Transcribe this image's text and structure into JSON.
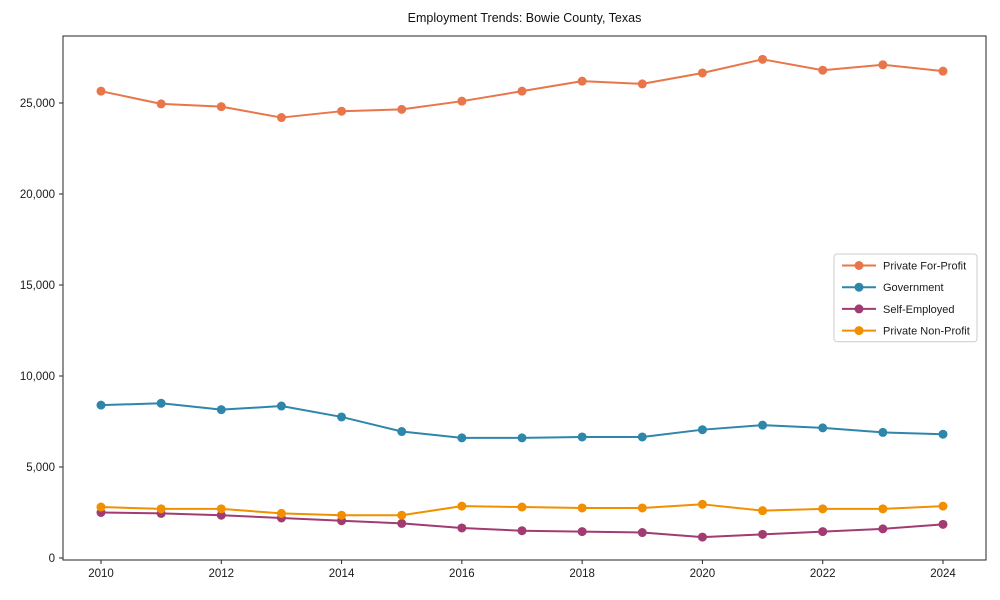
{
  "chart_data": {
    "type": "line",
    "title": "Employment Trends: Bowie County, Texas",
    "xlabel": "",
    "ylabel": "",
    "x": [
      2010,
      2011,
      2012,
      2013,
      2014,
      2015,
      2016,
      2017,
      2018,
      2019,
      2020,
      2021,
      2022,
      2023,
      2024
    ],
    "xticks": [
      2010,
      2012,
      2014,
      2016,
      2018,
      2020,
      2022,
      2024
    ],
    "yticks": [
      0,
      5000,
      10000,
      15000,
      20000,
      25000
    ],
    "ylim": [
      0,
      28600
    ],
    "grid": false,
    "legend_position": "center-right",
    "marker": "circle",
    "series": [
      {
        "name": "Private For-Profit",
        "color": "#e8764a",
        "values": [
          25650,
          24950,
          24800,
          24200,
          24550,
          24650,
          25100,
          25650,
          26200,
          26050,
          26650,
          27400,
          26800,
          27100,
          26750
        ]
      },
      {
        "name": "Government",
        "color": "#2e86ab",
        "values": [
          8400,
          8500,
          8150,
          8350,
          7750,
          6950,
          6600,
          6600,
          6650,
          6650,
          7050,
          7300,
          7150,
          6900,
          6800
        ]
      },
      {
        "name": "Self-Employed",
        "color": "#a23b72",
        "values": [
          2500,
          2450,
          2350,
          2200,
          2050,
          1900,
          1650,
          1500,
          1450,
          1400,
          1150,
          1300,
          1450,
          1600,
          1850
        ]
      },
      {
        "name": "Private Non-Profit",
        "color": "#f18f01",
        "values": [
          2800,
          2700,
          2700,
          2450,
          2350,
          2350,
          2850,
          2800,
          2750,
          2750,
          2950,
          2600,
          2700,
          2700,
          2850
        ]
      }
    ],
    "colors": {
      "spine": "#262626",
      "tick_label": "#1a1a1a",
      "legend_border": "#cccccc",
      "background": "#ffffff"
    }
  }
}
